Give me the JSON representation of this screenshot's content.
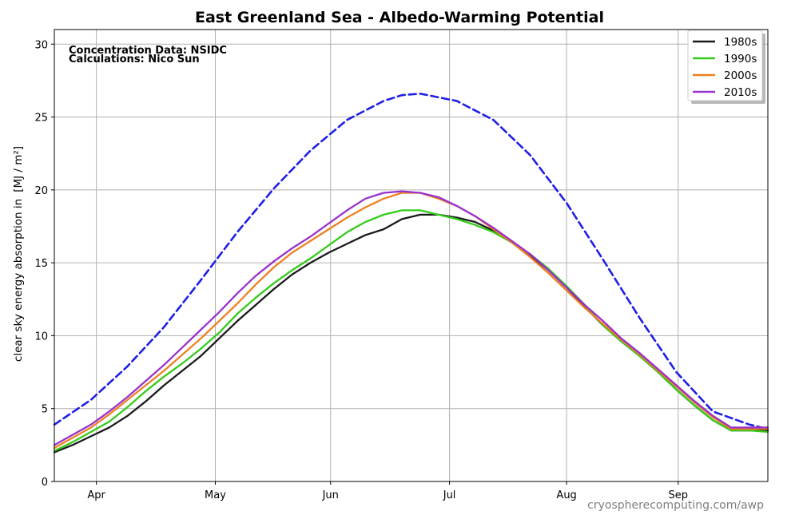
{
  "chart_data": {
    "type": "line",
    "title": "East Greenland Sea - Albedo-Warming Potential",
    "ylabel": "clear sky energy absorption in",
    "ylabel_unit": "[MJ / m²]",
    "annotations": [
      "Concentration Data: NSIDC",
      "Calculations: Nico Sun"
    ],
    "watermark": "cryospherecomputing.com/awp",
    "xlim_day_of_year": [
      70,
      265
    ],
    "ylim": [
      0,
      31
    ],
    "yticks": [
      0,
      5,
      10,
      15,
      20,
      25,
      30
    ],
    "xticks": [
      {
        "label": "Apr",
        "day": 81.5
      },
      {
        "label": "May",
        "day": 114
      },
      {
        "label": "Jun",
        "day": 145.5
      },
      {
        "label": "Jul",
        "day": 178
      },
      {
        "label": "Aug",
        "day": 210
      },
      {
        "label": "Sep",
        "day": 240.5
      }
    ],
    "grid": true,
    "legend_position": "top-right",
    "series": [
      {
        "name": "",
        "color": "#1f1fe6",
        "dashed": true,
        "x": [
          70,
          80,
          90,
          100,
          110,
          120,
          130,
          140,
          150,
          160,
          165,
          170,
          180,
          190,
          200,
          210,
          220,
          230,
          240,
          250,
          260,
          265
        ],
        "y": [
          3.9,
          5.6,
          7.9,
          10.6,
          13.8,
          17.1,
          20.1,
          22.7,
          24.8,
          26.1,
          26.5,
          26.6,
          26.1,
          24.8,
          22.4,
          19.1,
          15.2,
          11.2,
          7.5,
          4.8,
          3.9,
          3.6
        ]
      },
      {
        "name": "1980s",
        "color": "#1a1a1a",
        "dashed": false,
        "x": [
          70,
          75,
          80,
          85,
          90,
          95,
          100,
          105,
          110,
          115,
          120,
          125,
          130,
          135,
          140,
          145,
          150,
          155,
          160,
          165,
          170,
          175,
          180,
          185,
          190,
          195,
          200,
          205,
          210,
          215,
          220,
          225,
          230,
          235,
          240,
          245,
          250,
          255,
          260,
          265
        ],
        "y": [
          2.0,
          2.5,
          3.1,
          3.7,
          4.5,
          5.5,
          6.6,
          7.6,
          8.6,
          9.8,
          11.0,
          12.1,
          13.2,
          14.2,
          15.0,
          15.7,
          16.3,
          16.9,
          17.3,
          18.0,
          18.3,
          18.3,
          18.1,
          17.8,
          17.2,
          16.4,
          15.5,
          14.5,
          13.3,
          12.0,
          10.7,
          9.6,
          8.6,
          7.5,
          6.3,
          5.2,
          4.2,
          3.5,
          3.5,
          3.5
        ]
      },
      {
        "name": "1990s",
        "color": "#33cc1a",
        "dashed": false,
        "x": [
          70,
          75,
          80,
          85,
          90,
          95,
          100,
          105,
          110,
          115,
          120,
          125,
          130,
          135,
          140,
          145,
          150,
          155,
          160,
          165,
          170,
          175,
          180,
          185,
          190,
          195,
          200,
          205,
          210,
          215,
          220,
          225,
          230,
          235,
          240,
          245,
          250,
          255,
          260,
          265
        ],
        "y": [
          2.1,
          2.7,
          3.4,
          4.1,
          5.1,
          6.2,
          7.2,
          8.1,
          9.1,
          10.2,
          11.5,
          12.6,
          13.6,
          14.5,
          15.3,
          16.2,
          17.1,
          17.8,
          18.3,
          18.6,
          18.6,
          18.3,
          18.0,
          17.6,
          17.1,
          16.4,
          15.6,
          14.6,
          13.4,
          12.1,
          10.7,
          9.6,
          8.6,
          7.5,
          6.3,
          5.2,
          4.2,
          3.5,
          3.5,
          3.4
        ]
      },
      {
        "name": "2000s",
        "color": "#ee8020",
        "dashed": false,
        "x": [
          70,
          75,
          80,
          85,
          90,
          95,
          100,
          105,
          110,
          115,
          120,
          125,
          130,
          135,
          140,
          145,
          150,
          155,
          160,
          165,
          170,
          175,
          180,
          185,
          190,
          195,
          200,
          205,
          210,
          215,
          220,
          225,
          230,
          235,
          240,
          245,
          250,
          255,
          260,
          265
        ],
        "y": [
          2.3,
          3.0,
          3.7,
          4.6,
          5.6,
          6.6,
          7.6,
          8.7,
          9.8,
          11.0,
          12.2,
          13.5,
          14.7,
          15.7,
          16.5,
          17.3,
          18.1,
          18.8,
          19.4,
          19.8,
          19.8,
          19.4,
          18.9,
          18.2,
          17.3,
          16.4,
          15.4,
          14.3,
          13.1,
          11.9,
          10.8,
          9.7,
          8.7,
          7.6,
          6.5,
          5.4,
          4.4,
          3.6,
          3.6,
          3.6
        ]
      },
      {
        "name": "2010s",
        "color": "#9932cc",
        "dashed": false,
        "x": [
          70,
          75,
          80,
          85,
          90,
          95,
          100,
          105,
          110,
          115,
          120,
          125,
          130,
          135,
          140,
          145,
          150,
          155,
          160,
          165,
          170,
          175,
          180,
          185,
          190,
          195,
          200,
          205,
          210,
          215,
          220,
          225,
          230,
          235,
          240,
          245,
          250,
          255,
          260,
          265
        ],
        "y": [
          2.5,
          3.2,
          3.9,
          4.8,
          5.8,
          6.9,
          8.0,
          9.2,
          10.4,
          11.6,
          12.9,
          14.1,
          15.1,
          16.0,
          16.8,
          17.7,
          18.6,
          19.4,
          19.8,
          19.9,
          19.8,
          19.5,
          18.9,
          18.2,
          17.4,
          16.5,
          15.6,
          14.5,
          13.3,
          12.1,
          11.0,
          9.8,
          8.8,
          7.7,
          6.6,
          5.5,
          4.5,
          3.7,
          3.7,
          3.7
        ]
      }
    ]
  }
}
